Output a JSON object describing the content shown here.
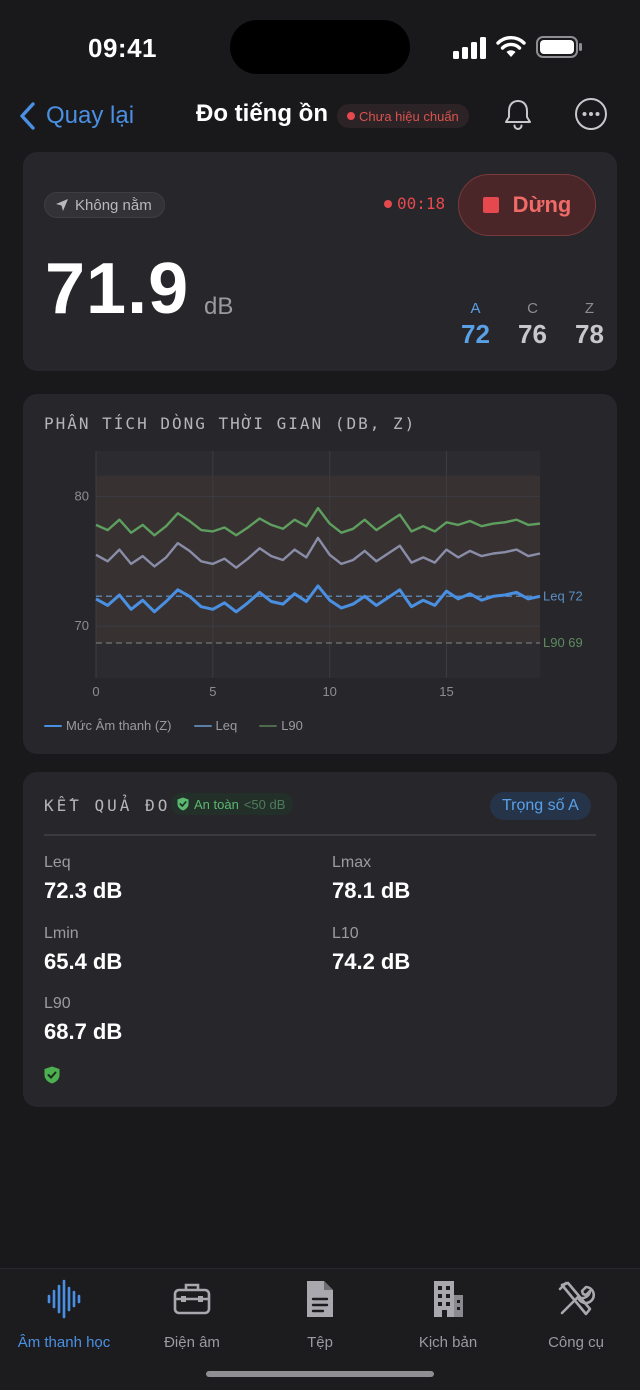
{
  "status_bar": {
    "time": "09:41"
  },
  "nav": {
    "back_label": "Quay lại",
    "title": "Đo tiếng ồn",
    "calibration_badge": "Chưa hiệu chuẩn"
  },
  "meter": {
    "location_chip": "Không nằm",
    "elapsed": "00:18",
    "stop_label": "Dừng",
    "level_value": "71.9",
    "level_unit": "dB",
    "weightings": [
      {
        "label": "A",
        "value": "72",
        "active": true
      },
      {
        "label": "C",
        "value": "76",
        "active": false
      },
      {
        "label": "Z",
        "value": "78",
        "active": false
      }
    ]
  },
  "colors": {
    "accent_blue": "#5aa0e6",
    "stop_red": "#e5484d",
    "level_series": "#4a90e2",
    "leq_series": "#8a8da8",
    "l90_series": "#5e9e5e",
    "safe_green": "#5bb870"
  },
  "chart_data": {
    "type": "line",
    "title": "PHÂN TÍCH DÒNG THỜI GIAN (DB, Z)",
    "xlabel": "",
    "ylabel": "",
    "xlim": [
      0,
      19
    ],
    "ylim": [
      66,
      83.5
    ],
    "x_ticks": [
      "0",
      "5",
      "10",
      "15"
    ],
    "y_ticks": [
      "80",
      "70"
    ],
    "x_tick_values": [
      0,
      5,
      10,
      15
    ],
    "y_tick_values": [
      80,
      70
    ],
    "band": {
      "from": 68.7,
      "to": 81.6
    },
    "reference_lines": [
      {
        "label": "Leq 72",
        "value": 72.3,
        "series": "leq"
      },
      {
        "label": "L90 69",
        "value": 68.7,
        "series": "l90"
      }
    ],
    "x": [
      0,
      0.5,
      1,
      1.5,
      2,
      2.5,
      3,
      3.5,
      4,
      4.5,
      5,
      5.5,
      6,
      6.5,
      7,
      7.5,
      8,
      8.5,
      9,
      9.5,
      10,
      10.5,
      11,
      11.5,
      12,
      12.5,
      13,
      13.5,
      14,
      14.5,
      15,
      15.5,
      16,
      16.5,
      17,
      17.5,
      18,
      18.5,
      19
    ],
    "series": [
      {
        "name": "Mức Âm thanh (Z)",
        "key": "level",
        "values": [
          72.1,
          71.6,
          72.4,
          71.3,
          72.0,
          71.1,
          71.9,
          72.8,
          72.3,
          71.5,
          71.3,
          71.8,
          71.1,
          71.8,
          72.6,
          71.9,
          71.7,
          72.5,
          71.9,
          73.1,
          72.0,
          71.4,
          71.7,
          72.3,
          71.6,
          72.2,
          72.8,
          71.5,
          72.0,
          71.6,
          72.7,
          72.1,
          72.5,
          72.0,
          72.3,
          72.4,
          72.6,
          72.1,
          72.3
        ]
      },
      {
        "name": "Leq",
        "key": "leq",
        "values": [
          75.5,
          75.0,
          75.9,
          74.8,
          75.4,
          74.6,
          75.3,
          76.4,
          75.8,
          75.0,
          74.8,
          75.2,
          74.5,
          75.2,
          76.0,
          75.4,
          75.1,
          75.9,
          75.3,
          76.8,
          75.5,
          74.8,
          75.1,
          75.8,
          75.0,
          75.6,
          76.2,
          74.9,
          75.3,
          74.9,
          75.9,
          75.3,
          75.8,
          75.4,
          75.6,
          75.7,
          75.9,
          75.4,
          75.6
        ]
      },
      {
        "name": "L90",
        "key": "l90",
        "values": [
          77.8,
          77.4,
          78.2,
          77.2,
          77.8,
          77.0,
          77.7,
          78.7,
          78.1,
          77.4,
          77.3,
          77.6,
          77.0,
          77.6,
          78.3,
          77.8,
          77.5,
          78.2,
          77.7,
          79.1,
          77.9,
          77.2,
          77.5,
          78.2,
          77.4,
          78.0,
          78.6,
          77.3,
          77.7,
          77.3,
          78.0,
          77.8,
          78.1,
          77.7,
          77.9,
          78.0,
          78.2,
          77.8,
          77.9
        ]
      }
    ],
    "legend": [
      "Mức Âm thanh (Z)",
      "Leq",
      "L90"
    ]
  },
  "results": {
    "title": "KẾT QUẢ ĐO",
    "safe_label": "An toàn",
    "safe_note": "<50 dB",
    "weighting_button": "Trọng số A",
    "metrics": [
      {
        "label": "Leq",
        "value": "72.3 dB"
      },
      {
        "label": "Lmax",
        "value": "78.1 dB"
      },
      {
        "label": "Lmin",
        "value": "65.4 dB"
      },
      {
        "label": "L10",
        "value": "74.2 dB"
      },
      {
        "label": "L90",
        "value": "68.7 dB"
      }
    ]
  },
  "tabs": [
    {
      "label": "Âm thanh học",
      "icon": "waveform-icon",
      "active": true
    },
    {
      "label": "Điện âm",
      "icon": "toolbox-icon",
      "active": false
    },
    {
      "label": "Tệp",
      "icon": "document-icon",
      "active": false
    },
    {
      "label": "Kịch bản",
      "icon": "building-icon",
      "active": false
    },
    {
      "label": "Công cụ",
      "icon": "tools-icon",
      "active": false
    }
  ]
}
